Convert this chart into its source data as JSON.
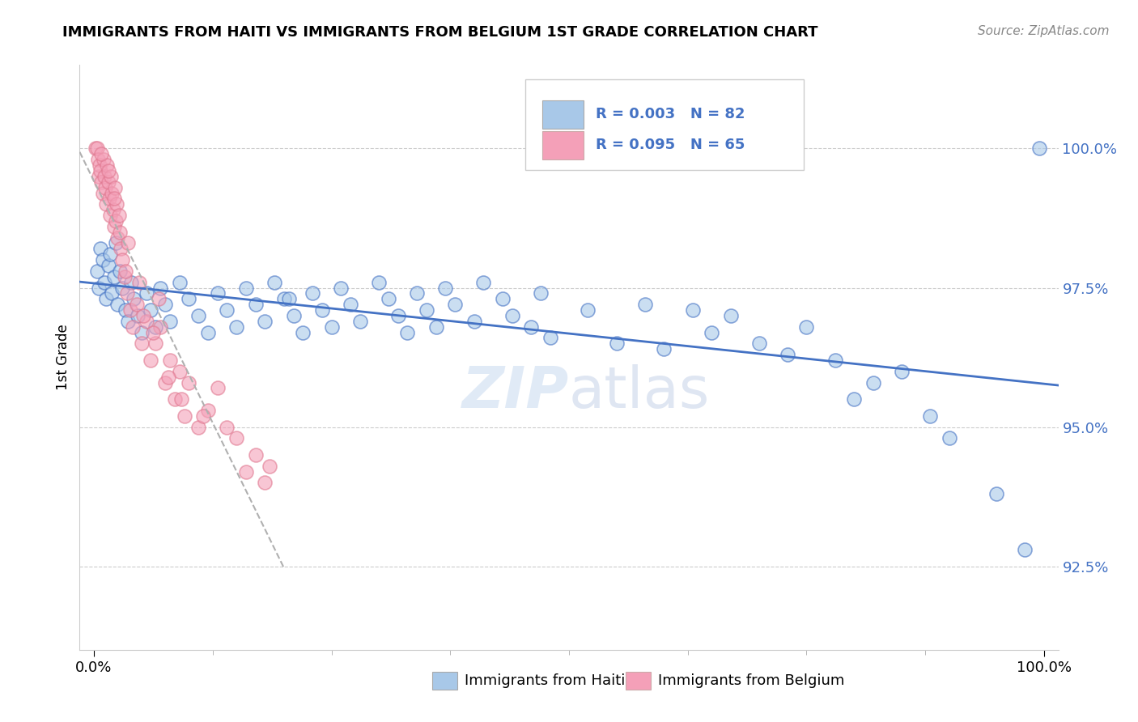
{
  "title": "IMMIGRANTS FROM HAITI VS IMMIGRANTS FROM BELGIUM 1ST GRADE CORRELATION CHART",
  "source_text": "Source: ZipAtlas.com",
  "ylabel": "1st Grade",
  "legend_haiti": "Immigrants from Haiti",
  "legend_belgium": "Immigrants from Belgium",
  "legend_r_haiti": "R = 0.003",
  "legend_n_haiti": "N = 82",
  "legend_r_belgium": "R = 0.095",
  "legend_n_belgium": "N = 65",
  "color_haiti": "#a8c8e8",
  "color_belgium": "#f4a0b8",
  "color_haiti_line": "#4472c4",
  "color_belgium_line": "#e07890",
  "color_tick": "#4472c4",
  "ylim_min": 91.0,
  "ylim_max": 101.5,
  "xlim_min": -1.5,
  "xlim_max": 101.5,
  "yticks": [
    92.5,
    95.0,
    97.5,
    100.0
  ],
  "ytick_labels": [
    "92.5%",
    "95.0%",
    "97.5%",
    "100.0%"
  ],
  "haiti_x": [
    0.3,
    0.5,
    0.7,
    0.9,
    1.1,
    1.3,
    1.5,
    1.7,
    1.9,
    2.1,
    2.3,
    2.5,
    2.7,
    3.0,
    3.3,
    3.6,
    3.9,
    4.2,
    4.6,
    5.0,
    5.5,
    6.0,
    6.5,
    7.0,
    7.5,
    8.0,
    9.0,
    10.0,
    11.0,
    12.0,
    13.0,
    14.0,
    15.0,
    16.0,
    17.0,
    18.0,
    19.0,
    20.0,
    21.0,
    22.0,
    23.0,
    24.0,
    25.0,
    26.0,
    27.0,
    28.0,
    30.0,
    31.0,
    32.0,
    33.0,
    34.0,
    35.0,
    36.0,
    37.0,
    38.0,
    40.0,
    41.0,
    43.0,
    44.0,
    46.0,
    47.0,
    48.0,
    52.0,
    55.0,
    58.0,
    60.0,
    63.0,
    65.0,
    67.0,
    70.0,
    73.0,
    75.0,
    78.0,
    80.0,
    82.0,
    85.0,
    88.0,
    90.0,
    95.0,
    98.0,
    99.5,
    20.5
  ],
  "haiti_y": [
    97.8,
    97.5,
    98.2,
    98.0,
    97.6,
    97.3,
    97.9,
    98.1,
    97.4,
    97.7,
    98.3,
    97.2,
    97.8,
    97.5,
    97.1,
    96.9,
    97.6,
    97.3,
    97.0,
    96.7,
    97.4,
    97.1,
    96.8,
    97.5,
    97.2,
    96.9,
    97.6,
    97.3,
    97.0,
    96.7,
    97.4,
    97.1,
    96.8,
    97.5,
    97.2,
    96.9,
    97.6,
    97.3,
    97.0,
    96.7,
    97.4,
    97.1,
    96.8,
    97.5,
    97.2,
    96.9,
    97.6,
    97.3,
    97.0,
    96.7,
    97.4,
    97.1,
    96.8,
    97.5,
    97.2,
    96.9,
    97.6,
    97.3,
    97.0,
    96.8,
    97.4,
    96.6,
    97.1,
    96.5,
    97.2,
    96.4,
    97.1,
    96.7,
    97.0,
    96.5,
    96.3,
    96.8,
    96.2,
    95.5,
    95.8,
    96.0,
    95.2,
    94.8,
    93.8,
    92.8,
    100.0,
    97.3
  ],
  "belgium_x": [
    0.2,
    0.3,
    0.4,
    0.5,
    0.6,
    0.7,
    0.8,
    0.9,
    1.0,
    1.1,
    1.2,
    1.3,
    1.4,
    1.5,
    1.6,
    1.7,
    1.8,
    1.9,
    2.0,
    2.1,
    2.2,
    2.3,
    2.4,
    2.5,
    2.6,
    2.7,
    2.8,
    3.0,
    3.2,
    3.5,
    3.8,
    4.1,
    4.5,
    5.0,
    5.5,
    6.0,
    6.5,
    7.0,
    7.5,
    8.0,
    8.5,
    9.0,
    9.5,
    10.0,
    11.0,
    12.0,
    13.0,
    14.0,
    15.0,
    16.0,
    17.0,
    18.0,
    3.3,
    5.2,
    6.8,
    0.8,
    1.5,
    2.1,
    3.6,
    4.8,
    6.2,
    7.8,
    9.2,
    11.5,
    18.5
  ],
  "belgium_y": [
    100.0,
    100.0,
    99.8,
    99.5,
    99.7,
    99.6,
    99.4,
    99.2,
    99.8,
    99.5,
    99.3,
    99.0,
    99.7,
    99.4,
    99.1,
    98.8,
    99.5,
    99.2,
    98.9,
    98.6,
    99.3,
    98.7,
    99.0,
    98.4,
    98.8,
    98.5,
    98.2,
    98.0,
    97.7,
    97.4,
    97.1,
    96.8,
    97.2,
    96.5,
    96.9,
    96.2,
    96.5,
    96.8,
    95.8,
    96.2,
    95.5,
    96.0,
    95.2,
    95.8,
    95.0,
    95.3,
    95.7,
    95.0,
    94.8,
    94.2,
    94.5,
    94.0,
    97.8,
    97.0,
    97.3,
    99.9,
    99.6,
    99.1,
    98.3,
    97.6,
    96.7,
    95.9,
    95.5,
    95.2,
    94.3
  ]
}
